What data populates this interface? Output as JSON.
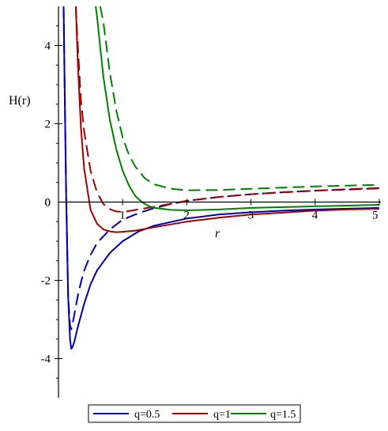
{
  "chart_data": {
    "type": "line",
    "ylabel": "H(r)",
    "xlabel": "r",
    "xlim": [
      0,
      5
    ],
    "ylim": [
      -5,
      5
    ],
    "x_ticks": [
      1,
      2,
      3,
      4,
      5
    ],
    "y_ticks": [
      -4,
      -2,
      0,
      2,
      4
    ],
    "legend_position": "bottom",
    "series": [
      {
        "name": "q=0.5",
        "color": "#0000a8",
        "style": "solid",
        "x": [
          0.08,
          0.1,
          0.12,
          0.15,
          0.18,
          0.2,
          0.22,
          0.25,
          0.3,
          0.35,
          0.4,
          0.5,
          0.6,
          0.8,
          1,
          1.25,
          1.5,
          2,
          2.5,
          3,
          3.5,
          4,
          4.5,
          5
        ],
        "y": [
          5,
          2.5,
          0.2,
          -2.4,
          -3.5,
          -3.75,
          -3.7,
          -3.55,
          -3.2,
          -2.9,
          -2.6,
          -2.1,
          -1.75,
          -1.3,
          -1.0,
          -0.75,
          -0.6,
          -0.42,
          -0.32,
          -0.26,
          -0.22,
          -0.19,
          -0.17,
          -0.15
        ]
      },
      {
        "name": "q=0.5 (dashed)",
        "color": "#0000a8",
        "style": "dashed",
        "x": [
          0.08,
          0.1,
          0.12,
          0.15,
          0.18,
          0.2,
          0.22,
          0.25,
          0.3,
          0.35,
          0.4,
          0.5,
          0.6,
          0.8,
          1,
          1.25,
          1.5,
          1.75,
          2,
          2.5,
          3,
          3.5,
          4,
          4.5,
          5
        ],
        "y": [
          5,
          2.5,
          0.3,
          -2.4,
          -3.15,
          -3.25,
          -3.1,
          -2.85,
          -2.4,
          -2.05,
          -1.75,
          -1.35,
          -1.05,
          -0.7,
          -0.45,
          -0.28,
          -0.15,
          -0.05,
          0.03,
          0.13,
          0.2,
          0.25,
          0.29,
          0.32,
          0.35
        ]
      },
      {
        "name": "q=1",
        "color": "#a00000",
        "style": "solid",
        "x": [
          0.27,
          0.3,
          0.35,
          0.4,
          0.5,
          0.6,
          0.7,
          0.8,
          0.9,
          1,
          1.2,
          1.5,
          2,
          2.5,
          3,
          3.5,
          4,
          4.5,
          5
        ],
        "y": [
          5,
          3.6,
          1.9,
          0.85,
          -0.2,
          -0.55,
          -0.7,
          -0.75,
          -0.77,
          -0.76,
          -0.73,
          -0.64,
          -0.5,
          -0.4,
          -0.32,
          -0.27,
          -0.22,
          -0.19,
          -0.17
        ]
      },
      {
        "name": "q=1 (dashed)",
        "color": "#a00000",
        "style": "dashed",
        "x": [
          0.27,
          0.3,
          0.35,
          0.4,
          0.5,
          0.6,
          0.7,
          0.8,
          0.9,
          1,
          1.1,
          1.2,
          1.5,
          2,
          2.5,
          3,
          3.5,
          4,
          4.5,
          5
        ],
        "y": [
          5,
          4.0,
          2.6,
          1.8,
          0.8,
          0.25,
          -0.05,
          -0.18,
          -0.24,
          -0.25,
          -0.23,
          -0.2,
          -0.12,
          0.03,
          0.13,
          0.2,
          0.25,
          0.29,
          0.33,
          0.36
        ]
      },
      {
        "name": "q=1.5",
        "color": "#008000",
        "style": "solid",
        "x": [
          0.58,
          0.6,
          0.7,
          0.8,
          0.9,
          1,
          1.1,
          1.2,
          1.3,
          1.4,
          1.5,
          1.75,
          2,
          2.5,
          3,
          3.5,
          4,
          4.5,
          5
        ],
        "y": [
          5,
          4.75,
          3.2,
          2.1,
          1.35,
          0.8,
          0.42,
          0.15,
          0,
          -0.1,
          -0.15,
          -0.2,
          -0.21,
          -0.19,
          -0.15,
          -0.13,
          -0.11,
          -0.09,
          -0.07
        ]
      },
      {
        "name": "q=1.5 (dashed)",
        "color": "#008000",
        "style": "dashed",
        "x": [
          0.65,
          0.7,
          0.8,
          0.9,
          1,
          1.1,
          1.2,
          1.35,
          1.5,
          1.75,
          2,
          2.5,
          3,
          3.5,
          4,
          4.5,
          5
        ],
        "y": [
          5,
          4.6,
          3.3,
          2.35,
          1.65,
          1.2,
          0.9,
          0.6,
          0.45,
          0.34,
          0.3,
          0.31,
          0.34,
          0.37,
          0.4,
          0.42,
          0.44
        ]
      }
    ],
    "legend": [
      {
        "label": "q=0.5",
        "color": "#0000a8"
      },
      {
        "label": "q=1",
        "color": "#a00000"
      },
      {
        "label": "q=1.5",
        "color": "#008000"
      }
    ]
  }
}
